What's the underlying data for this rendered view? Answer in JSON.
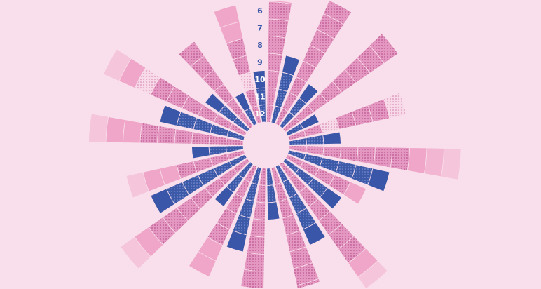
{
  "chart_data": {
    "type": "radial-bar",
    "title": "",
    "ring_labels": [
      "12",
      "11",
      "10",
      "9",
      "8",
      "7",
      "6"
    ],
    "segment_styles": {
      "b": {
        "label": "blue dotted",
        "color": "#3d5aa9"
      },
      "B": {
        "label": "solid blue",
        "color": "#3a56a8"
      },
      "p": {
        "label": "pink dotted",
        "color": "#e291bd"
      },
      "l": {
        "label": "light dotted",
        "color": "#f6d3e4"
      },
      "s": {
        "label": "solid pink",
        "color": "#f0a6c8"
      },
      "f": {
        "label": "fading pink",
        "color": "#f0a6c8"
      }
    },
    "spokes": [
      {
        "segments": "pppppppss"
      },
      {
        "segments": "bbbB"
      },
      {
        "segments": "ppppppppss"
      },
      {
        "segments": "bbB"
      },
      {
        "segments": "pppppppp"
      },
      {
        "segments": "bB"
      },
      {
        "segments": "pplpppl"
      },
      {
        "segments": "bbB"
      },
      {
        "segments": "pppppppsff"
      },
      {
        "segments": "bbbbbB"
      },
      {
        "segments": "pppps"
      },
      {
        "segments": "bbbB"
      },
      {
        "segments": "pppppppsf"
      },
      {
        "segments": "bbbbB"
      },
      {
        "segments": "ppppppppp"
      },
      {
        "segments": "bbB"
      },
      {
        "segments": "pppppppss"
      },
      {
        "segments": "bbbbB"
      },
      {
        "segments": "pppppss"
      },
      {
        "segments": "bbB"
      },
      {
        "segments": "pppppppsf"
      },
      {
        "segments": "bbbbbB"
      },
      {
        "segments": "ppppssf"
      },
      {
        "segments": "bbB"
      },
      {
        "segments": "ppppppssf"
      },
      {
        "segments": "bbbbB"
      },
      {
        "segments": "pppppplsf"
      },
      {
        "segments": "bbB"
      },
      {
        "segments": "pppppp"
      },
      {
        "segments": "bB"
      },
      {
        "segments": "pplppss"
      },
      {
        "segments": "bbB"
      }
    ],
    "colors": {
      "background": "#f9dfeb",
      "label": "#3a56a8",
      "label_on_blue": "#ffffff"
    }
  }
}
